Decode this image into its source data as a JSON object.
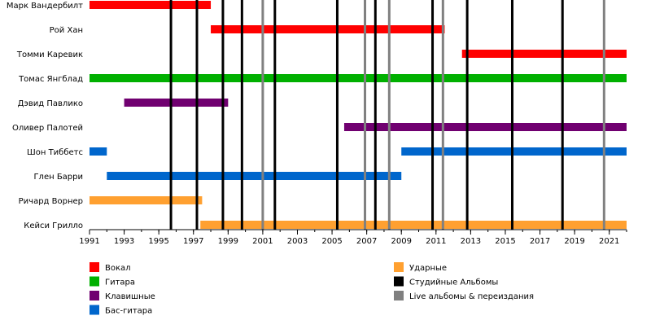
{
  "chart_data": {
    "type": "timeline",
    "title": "",
    "x_axis": {
      "min": 1991.0,
      "max": 2022.0,
      "ticks": [
        1991,
        1993,
        1995,
        1997,
        1999,
        2001,
        2003,
        2005,
        2007,
        2009,
        2011,
        2013,
        2015,
        2017,
        2019,
        2021
      ],
      "minor_every": 1
    },
    "members": [
      {
        "name": "Марк Вандербилт",
        "spans": [
          {
            "role": "vocals",
            "start": 1991.0,
            "end": 1998.0
          }
        ]
      },
      {
        "name": "Рой Хан",
        "spans": [
          {
            "role": "vocals",
            "start": 1998.0,
            "end": 2011.5
          }
        ]
      },
      {
        "name": "Томми Каревик",
        "spans": [
          {
            "role": "vocals",
            "start": 2012.5,
            "end": 2022.0
          }
        ]
      },
      {
        "name": "Томас Янгблад",
        "spans": [
          {
            "role": "guitar",
            "start": 1991.0,
            "end": 2022.0
          }
        ]
      },
      {
        "name": "Дэвид Павлико",
        "spans": [
          {
            "role": "keyboards",
            "start": 1993.0,
            "end": 1999.0
          }
        ]
      },
      {
        "name": "Оливер Палотей",
        "spans": [
          {
            "role": "keyboards",
            "start": 2005.7,
            "end": 2022.0
          }
        ]
      },
      {
        "name": "Шон Тиббетс",
        "spans": [
          {
            "role": "bass",
            "start": 1991.0,
            "end": 1992.0
          },
          {
            "role": "bass",
            "start": 2009.0,
            "end": 2022.0
          }
        ]
      },
      {
        "name": "Глен Барри",
        "spans": [
          {
            "role": "bass",
            "start": 1992.0,
            "end": 2009.0
          }
        ]
      },
      {
        "name": "Ричард Ворнер",
        "spans": [
          {
            "role": "drums",
            "start": 1991.0,
            "end": 1997.5
          }
        ]
      },
      {
        "name": "Кейси Грилло",
        "spans": [
          {
            "role": "drums",
            "start": 1997.4,
            "end": 2022.0
          }
        ]
      }
    ],
    "studio_albums": [
      1995.7,
      1997.2,
      1998.7,
      1999.8,
      2001.7,
      2005.3,
      2007.5,
      2010.8,
      2012.8,
      2015.4,
      2018.3
    ],
    "live_albums_and_reissues": [
      2001.0,
      2006.9,
      2008.3,
      2011.4,
      2020.7
    ],
    "roles": {
      "vocals": {
        "label": "Вокал",
        "color": "#ff0000"
      },
      "guitar": {
        "label": "Гитара",
        "color": "#00b000"
      },
      "keyboards": {
        "label": "Клавишные",
        "color": "#700070"
      },
      "bass": {
        "label": "Бас-гитара",
        "color": "#0066cc"
      },
      "drums": {
        "label": "Ударные",
        "color": "#ffa030"
      }
    },
    "line_colors": {
      "studio": "#000000",
      "live": "#808080"
    },
    "legend": [
      {
        "label": "Вокал",
        "color": "#ff0000"
      },
      {
        "label": "Гитара",
        "color": "#00b000"
      },
      {
        "label": "Клавишные",
        "color": "#700070"
      },
      {
        "label": "Бас-гитара",
        "color": "#0066cc"
      },
      {
        "label": "Ударные",
        "color": "#ffa030"
      },
      {
        "label": "Студийные Альбомы",
        "color": "#000000"
      },
      {
        "label": "Live альбомы & переиздания",
        "color": "#808080"
      }
    ]
  }
}
